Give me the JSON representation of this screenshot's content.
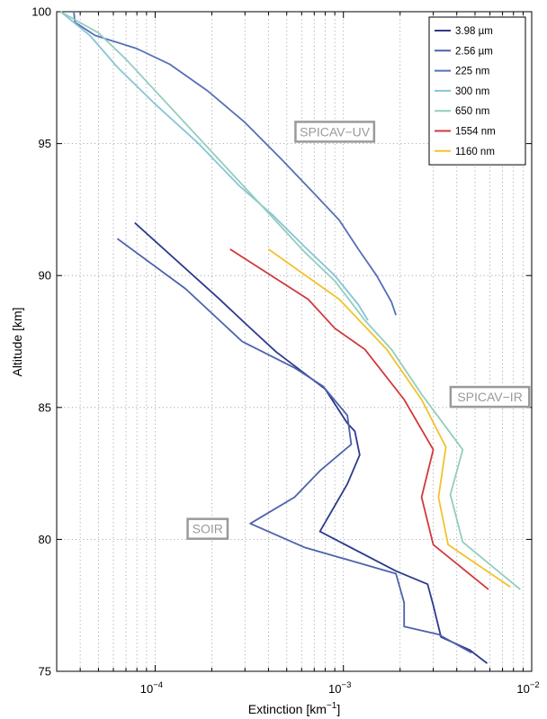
{
  "chart_data": {
    "type": "line",
    "xlabel": "Extinction",
    "xlabel_unit": "[km",
    "xlabel_exp": "−1",
    "xlabel_close": "]",
    "ylabel": "Altitude [km]",
    "xscale": "log",
    "xlim": [
      3e-05,
      0.01
    ],
    "ylim": [
      75,
      100
    ],
    "x_ticks": [
      {
        "base": "10",
        "exp": "−4",
        "value": 0.0001
      },
      {
        "base": "10",
        "exp": "−3",
        "value": 0.001
      },
      {
        "base": "10",
        "exp": "−2",
        "value": 0.01
      }
    ],
    "y_ticks": [
      "75",
      "80",
      "85",
      "90",
      "95",
      "100"
    ],
    "grid": true,
    "legend_position": "top-right",
    "series": [
      {
        "name": "3.98 µm",
        "color": "#2e3a8c",
        "points": [
          [
            7.8e-05,
            92.0
          ],
          [
            0.00022,
            89.1
          ],
          [
            0.00031,
            88.1
          ],
          [
            0.00044,
            87.1
          ],
          [
            0.0008,
            85.7
          ],
          [
            0.00105,
            84.4
          ],
          [
            0.00115,
            84.1
          ],
          [
            0.00122,
            83.2
          ],
          [
            0.00105,
            82.1
          ],
          [
            0.00075,
            80.3
          ],
          [
            0.0019,
            78.8
          ],
          [
            0.0028,
            78.3
          ],
          [
            0.003,
            77.5
          ],
          [
            0.0033,
            76.3
          ],
          [
            0.0047,
            75.8
          ],
          [
            0.0058,
            75.3
          ]
        ]
      },
      {
        "name": "2.56 µm",
        "color": "#4c62ad",
        "points": [
          [
            6.3e-05,
            91.4
          ],
          [
            0.000145,
            89.5
          ],
          [
            0.00029,
            87.5
          ],
          [
            0.00055,
            86.5
          ],
          [
            0.00078,
            85.8
          ],
          [
            0.00105,
            84.7
          ],
          [
            0.0011,
            83.6
          ],
          [
            0.00075,
            82.6
          ],
          [
            0.00055,
            81.6
          ],
          [
            0.00032,
            80.6
          ],
          [
            0.00062,
            79.7
          ],
          [
            0.0019,
            78.7
          ],
          [
            0.0021,
            77.6
          ],
          [
            0.0021,
            76.7
          ],
          [
            0.0032,
            76.4
          ],
          [
            0.0048,
            75.7
          ]
        ]
      },
      {
        "name": "225 nm",
        "color": "#5470b6",
        "points": [
          [
            3.7e-05,
            100.0
          ],
          [
            3.75e-05,
            99.6
          ],
          [
            4.8e-05,
            99.1
          ],
          [
            8e-05,
            98.6
          ],
          [
            0.00012,
            98.0
          ],
          [
            0.00019,
            97.0
          ],
          [
            0.0003,
            95.8
          ],
          [
            0.00047,
            94.4
          ],
          [
            0.00068,
            93.2
          ],
          [
            0.00095,
            92.1
          ],
          [
            0.0012,
            91.0
          ],
          [
            0.0015,
            90.0
          ],
          [
            0.0018,
            89.0
          ],
          [
            0.0019,
            88.5
          ]
        ]
      },
      {
        "name": "300 nm",
        "color": "#86c5d6",
        "points": [
          [
            3.15e-05,
            100.0
          ],
          [
            4.5e-05,
            99.1
          ],
          [
            6.3e-05,
            97.9
          ],
          [
            0.0001,
            96.5
          ],
          [
            0.00017,
            95.0
          ],
          [
            0.00028,
            93.4
          ],
          [
            0.00042,
            92.3
          ],
          [
            0.00062,
            91.1
          ],
          [
            0.0009,
            90.0
          ],
          [
            0.0012,
            88.9
          ],
          [
            0.00135,
            88.3
          ]
        ]
      },
      {
        "name": "650 nm",
        "color": "#92cdbf",
        "points": [
          [
            3.15e-05,
            100.0
          ],
          [
            5e-05,
            99.2
          ],
          [
            7e-05,
            98.2
          ],
          [
            0.00062,
            90.9
          ],
          [
            0.0009,
            89.8
          ],
          [
            0.0013,
            88.3
          ],
          [
            0.0018,
            87.2
          ],
          [
            0.0026,
            85.5
          ],
          [
            0.0043,
            83.4
          ],
          [
            0.0037,
            81.7
          ],
          [
            0.0043,
            79.9
          ],
          [
            0.0087,
            78.1
          ]
        ]
      },
      {
        "name": "1554 nm",
        "color": "#d1393b",
        "points": [
          [
            0.00025,
            91.0
          ],
          [
            0.00065,
            89.1
          ],
          [
            0.0009,
            88.0
          ],
          [
            0.0013,
            87.2
          ],
          [
            0.0021,
            85.3
          ],
          [
            0.003,
            83.4
          ],
          [
            0.0026,
            81.6
          ],
          [
            0.003,
            79.8
          ],
          [
            0.0059,
            78.1
          ]
        ]
      },
      {
        "name": "1160 nm",
        "color": "#f2c22d",
        "points": [
          [
            0.0004,
            91.0
          ],
          [
            0.00095,
            89.1
          ],
          [
            0.0017,
            87.2
          ],
          [
            0.0026,
            85.3
          ],
          [
            0.0035,
            83.5
          ],
          [
            0.0032,
            81.6
          ],
          [
            0.0036,
            79.8
          ],
          [
            0.0077,
            78.2
          ]
        ]
      }
    ],
    "annotations": [
      {
        "text": "SPICAV−UV",
        "x": 0.0009,
        "y": 95.45
      },
      {
        "text": "SPICAV−IR",
        "x": 0.006,
        "y": 85.4
      },
      {
        "text": "SOIR",
        "x": 0.00019,
        "y": 80.4
      }
    ]
  }
}
